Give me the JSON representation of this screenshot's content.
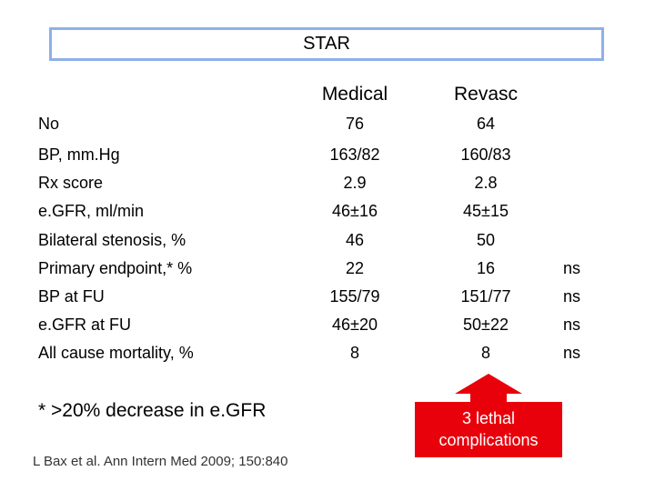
{
  "title": "STAR",
  "columns": [
    "Medical",
    "Revasc"
  ],
  "rows": [
    {
      "label": "No",
      "medical": "76",
      "revasc": "64",
      "sig": ""
    },
    {
      "label": "BP, mm.Hg",
      "medical": "163/82",
      "revasc": "160/83",
      "sig": ""
    },
    {
      "label": "Rx score",
      "medical": "2.9",
      "revasc": "2.8",
      "sig": ""
    },
    {
      "label": "e.GFR, ml/min",
      "medical": "46±16",
      "revasc": "45±15",
      "sig": ""
    },
    {
      "label": "Bilateral stenosis, %",
      "medical": "46",
      "revasc": "50",
      "sig": ""
    },
    {
      "label": "Primary endpoint,* %",
      "medical": "22",
      "revasc": "16",
      "sig": "ns"
    },
    {
      "label": "BP at FU",
      "medical": "155/79",
      "revasc": "151/77",
      "sig": "ns"
    },
    {
      "label": "e.GFR at FU",
      "medical": "46±20",
      "revasc": "50±22",
      "sig": "ns"
    },
    {
      "label": "All cause mortality, %",
      "medical": "8",
      "revasc": "8",
      "sig": "ns"
    }
  ],
  "footnote": "* >20% decrease in e.GFR",
  "citation": "L Bax et al. Ann Intern Med 2009; 150:840",
  "callout": {
    "line1": "3 lethal",
    "line2": "complications",
    "color": "#e8000b"
  }
}
